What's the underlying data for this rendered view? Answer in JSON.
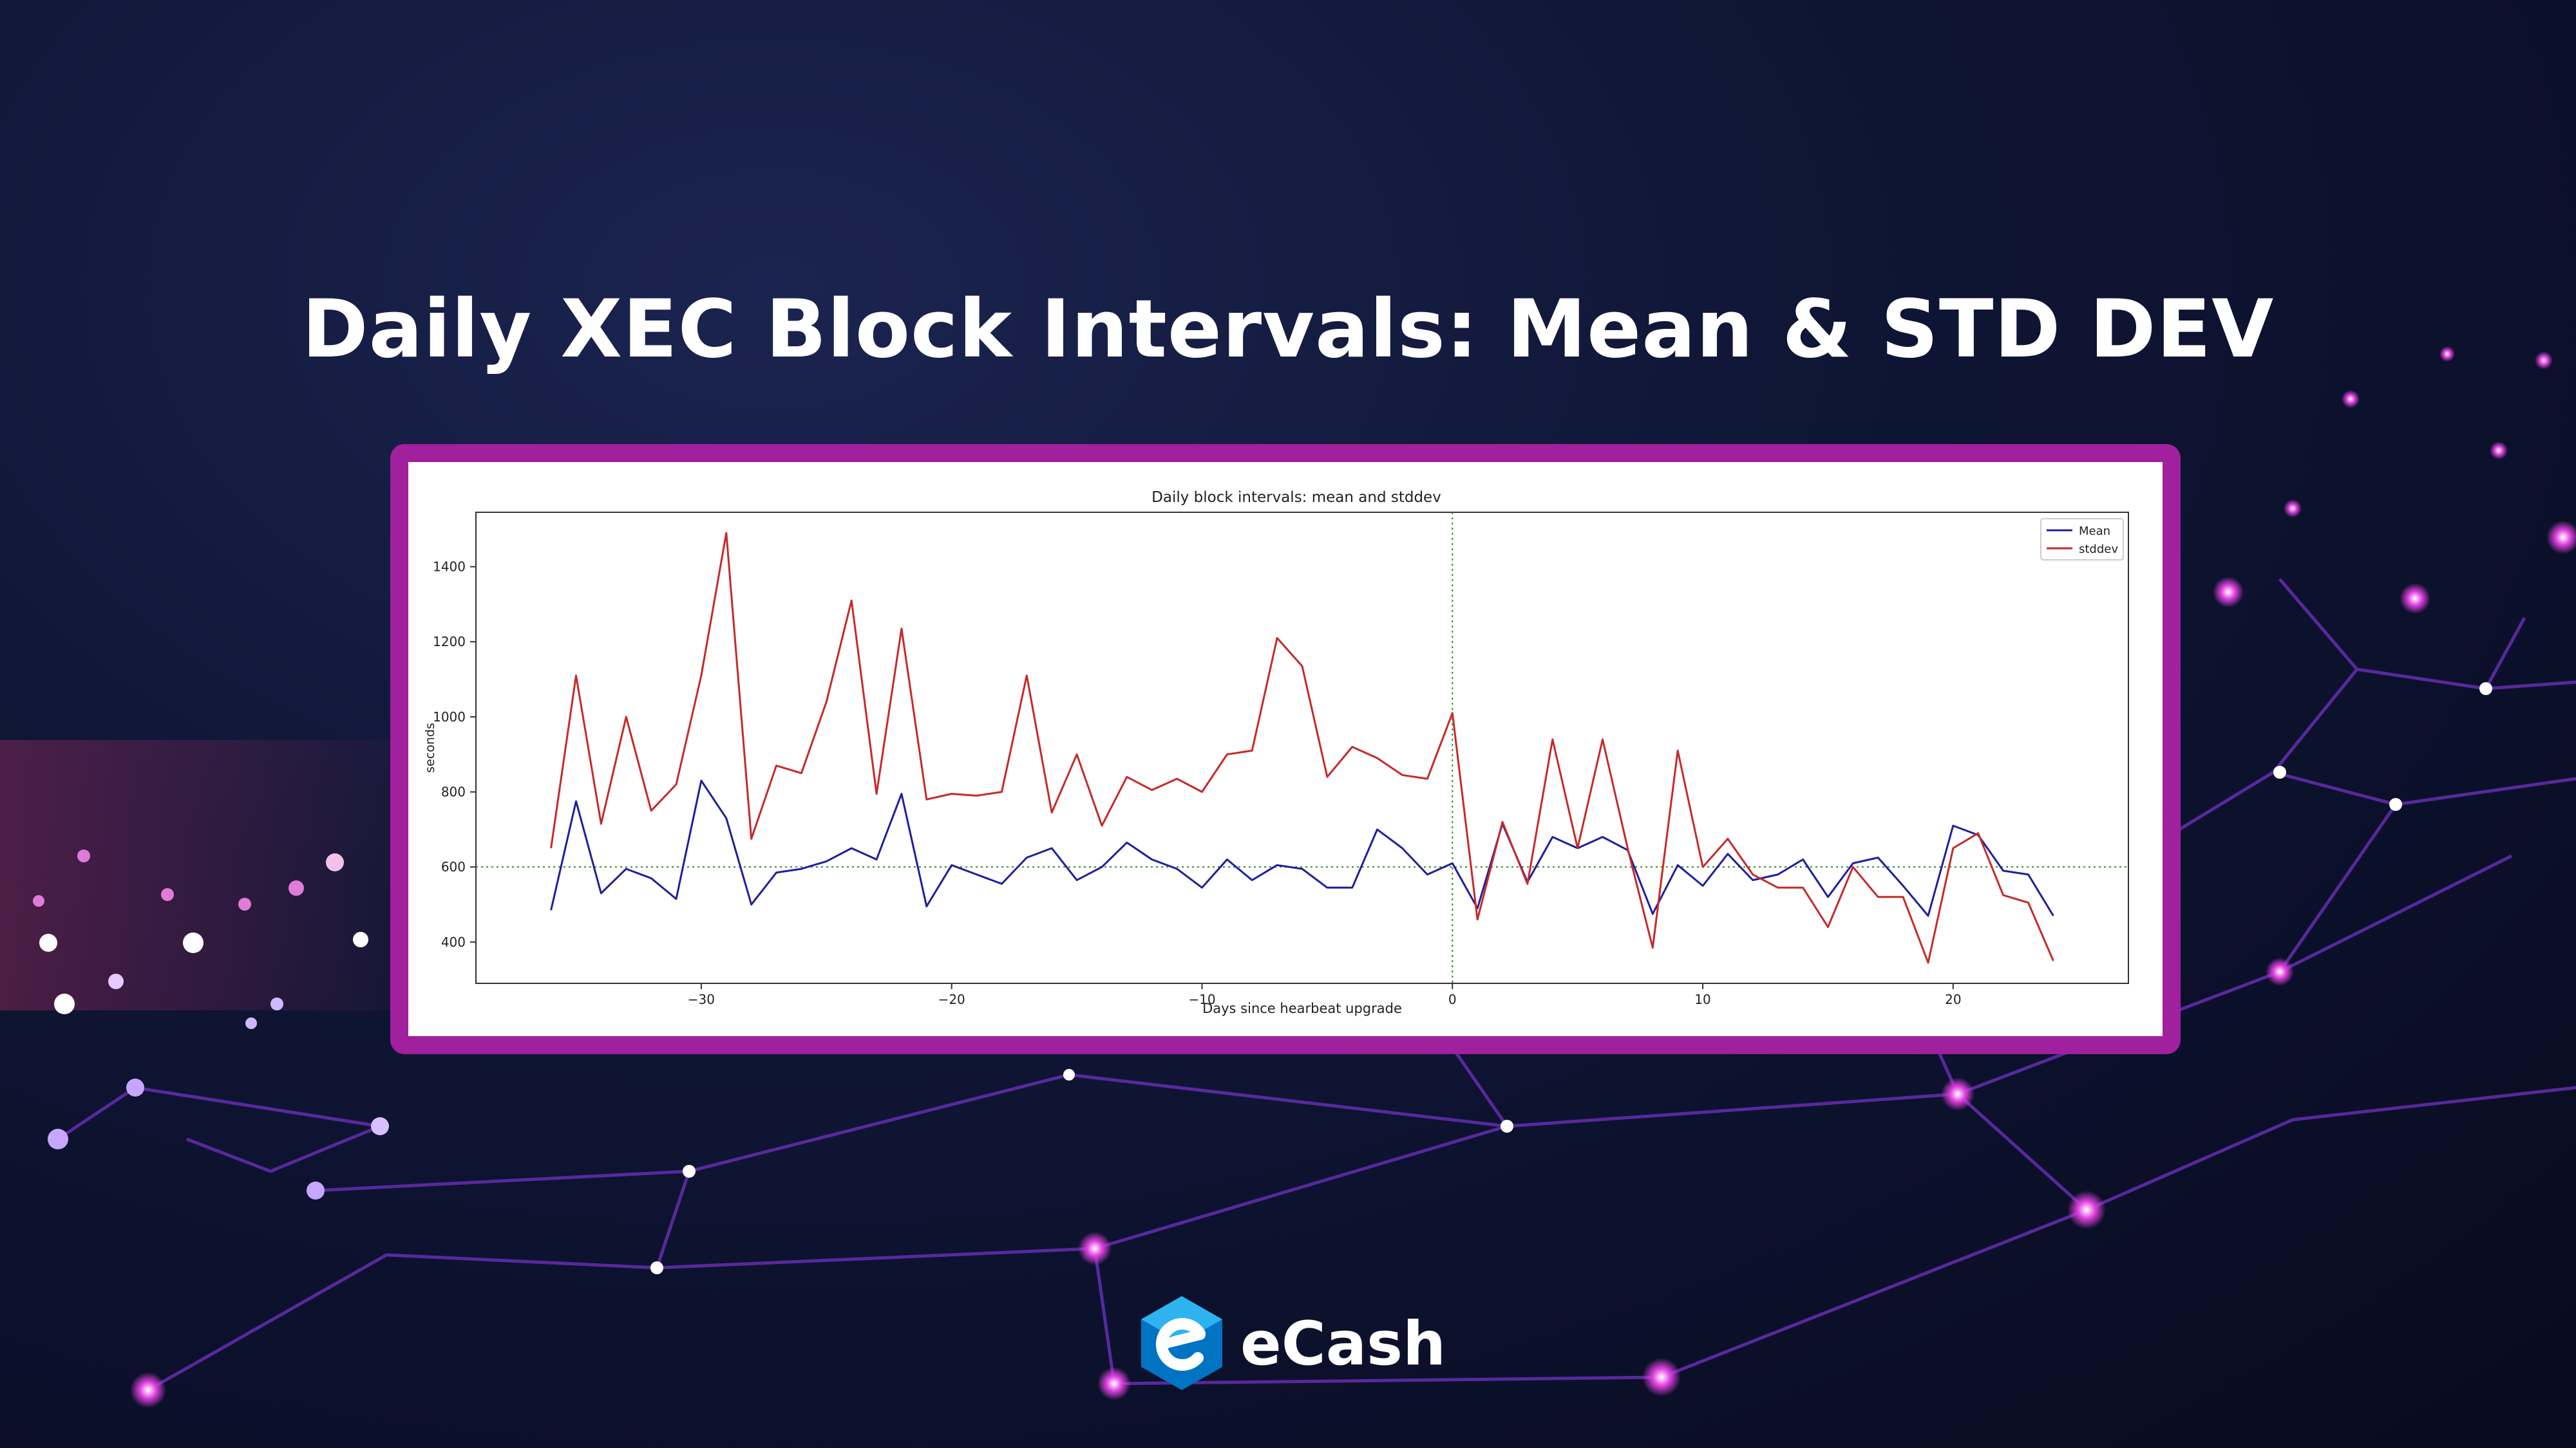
{
  "headline": "Daily XEC Block Intervals: Mean & STD DEV",
  "brand": {
    "name": "eCash",
    "accent": "#0074c2"
  },
  "colors": {
    "frame": "#a0209e",
    "mean": "#1f1f9e",
    "stddev": "#c62a2a",
    "reference": "#2e8b2e"
  },
  "chart_data": {
    "type": "line",
    "title": "Daily block intervals: mean and stddev",
    "xlabel": "Days since hearbeat upgrade",
    "ylabel": "seconds",
    "xlim": [
      -39,
      27
    ],
    "ylim": [
      290,
      1545
    ],
    "xticks": [
      -30,
      -20,
      -10,
      0,
      10,
      20
    ],
    "xtick_labels": [
      "−30",
      "−20",
      "−10",
      "0",
      "10",
      "20"
    ],
    "yticks": [
      400,
      600,
      800,
      1000,
      1200,
      1400
    ],
    "legend_position": "top-right",
    "grid": false,
    "reference_lines": {
      "x": 0,
      "y": 600,
      "style": "dotted",
      "color": "green"
    },
    "x": [
      -36,
      -35,
      -34,
      -33,
      -32,
      -31,
      -30,
      -29,
      -28,
      -27,
      -26,
      -25,
      -24,
      -23,
      -22,
      -21,
      -20,
      -19,
      -18,
      -17,
      -16,
      -15,
      -14,
      -13,
      -12,
      -11,
      -10,
      -9,
      -8,
      -7,
      -6,
      -5,
      -4,
      -3,
      -2,
      -1,
      0,
      1,
      2,
      3,
      4,
      5,
      6,
      7,
      8,
      9,
      10,
      11,
      12,
      13,
      14,
      15,
      16,
      17,
      18,
      19,
      20,
      21,
      22,
      23,
      24
    ],
    "series": [
      {
        "name": "Mean",
        "color": "#1f1f9e",
        "values": [
          485,
          775,
          530,
          595,
          570,
          515,
          830,
          730,
          500,
          585,
          595,
          615,
          650,
          620,
          795,
          495,
          605,
          580,
          555,
          625,
          650,
          565,
          600,
          665,
          620,
          595,
          545,
          620,
          565,
          605,
          595,
          545,
          545,
          700,
          650,
          580,
          610,
          490,
          715,
          560,
          680,
          650,
          680,
          645,
          475,
          605,
          550,
          635,
          565,
          580,
          620,
          520,
          610,
          625,
          550,
          470,
          710,
          685,
          590,
          580,
          470
        ]
      },
      {
        "name": "stddev",
        "color": "#c62a2a",
        "values": [
          650,
          1110,
          715,
          1000,
          750,
          820,
          1110,
          1490,
          675,
          870,
          850,
          1040,
          1310,
          795,
          1235,
          780,
          795,
          790,
          800,
          1110,
          745,
          900,
          710,
          840,
          805,
          835,
          800,
          900,
          910,
          1210,
          1135,
          840,
          920,
          890,
          845,
          835,
          1010,
          460,
          720,
          555,
          940,
          650,
          940,
          650,
          385,
          910,
          600,
          675,
          580,
          545,
          545,
          440,
          600,
          520,
          520,
          345,
          650,
          690,
          525,
          505,
          350
        ]
      }
    ]
  }
}
